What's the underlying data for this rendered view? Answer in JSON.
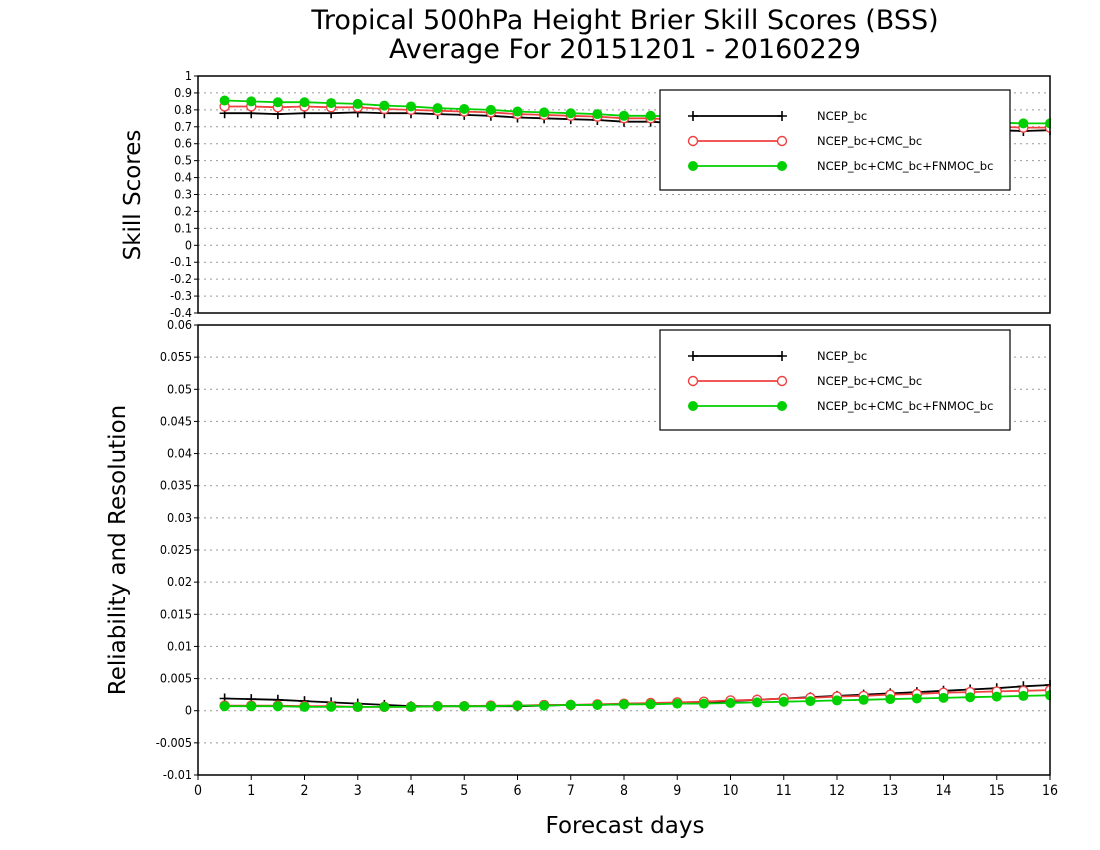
{
  "title": {
    "line1": "Tropical 500hPa Height Brier Skill Scores (BSS)",
    "line2": "Average For 20151201 - 20160229"
  },
  "x_axis": {
    "label": "Forecast days",
    "ticks": [
      "0",
      "1",
      "2",
      "3",
      "4",
      "5",
      "6",
      "7",
      "8",
      "9",
      "10",
      "11",
      "12",
      "13",
      "14",
      "15",
      "16"
    ],
    "range": [
      0,
      16
    ]
  },
  "colors": {
    "ncep": "#000000",
    "ncep_cmc": "#f04040",
    "ncep_cmc_fnmoc": "#00d000",
    "grid": "#999999"
  },
  "chart_data": [
    {
      "type": "line",
      "ylabel": "Skill Scores",
      "ylim": [
        -0.4,
        1
      ],
      "yticks": [
        "1",
        "0.9",
        "0.8",
        "0.7",
        "0.6",
        "0.5",
        "0.4",
        "0.3",
        "0.2",
        "0.1",
        "0",
        "-0.1",
        "-0.2",
        "-0.3",
        "-0.4"
      ],
      "grid": true,
      "legend_position": "top-right",
      "x": [
        0.5,
        1,
        1.5,
        2,
        2.5,
        3,
        3.5,
        4,
        4.5,
        5,
        5.5,
        6,
        6.5,
        7,
        7.5,
        8,
        8.5,
        9,
        9.5,
        10,
        10.5,
        11,
        11.5,
        12,
        12.5,
        13,
        13.5,
        14,
        14.5,
        15,
        15.5,
        16
      ],
      "series": [
        {
          "name": "NCEP_bc",
          "marker": "plus",
          "values": [
            0.78,
            0.78,
            0.775,
            0.78,
            0.78,
            0.785,
            0.78,
            0.78,
            0.775,
            0.77,
            0.765,
            0.755,
            0.75,
            0.745,
            0.74,
            0.73,
            0.73,
            0.72,
            0.72,
            0.715,
            0.71,
            0.71,
            0.705,
            0.7,
            0.7,
            0.695,
            0.69,
            0.69,
            0.685,
            0.68,
            0.675,
            0.68
          ]
        },
        {
          "name": "NCEP_bc+CMC_bc",
          "marker": "open-circle",
          "values": [
            0.82,
            0.82,
            0.815,
            0.82,
            0.815,
            0.815,
            0.805,
            0.8,
            0.795,
            0.79,
            0.785,
            0.775,
            0.77,
            0.765,
            0.76,
            0.75,
            0.75,
            0.74,
            0.74,
            0.735,
            0.73,
            0.73,
            0.72,
            0.72,
            0.715,
            0.715,
            0.71,
            0.71,
            0.705,
            0.7,
            0.695,
            0.695
          ]
        },
        {
          "name": "NCEP_bc+CMC_bc+FNMOC_bc",
          "marker": "filled-circle",
          "values": [
            0.855,
            0.85,
            0.845,
            0.845,
            0.84,
            0.835,
            0.825,
            0.82,
            0.81,
            0.805,
            0.8,
            0.79,
            0.785,
            0.78,
            0.775,
            0.765,
            0.765,
            0.76,
            0.76,
            0.755,
            0.75,
            0.75,
            0.745,
            0.745,
            0.74,
            0.74,
            0.735,
            0.735,
            0.73,
            0.725,
            0.72,
            0.72
          ]
        }
      ]
    },
    {
      "type": "line",
      "ylabel": "Reliability and Resolution",
      "ylim": [
        -0.01,
        0.06
      ],
      "yticks": [
        "0.06",
        "0.055",
        "0.05",
        "0.045",
        "0.04",
        "0.035",
        "0.03",
        "0.025",
        "0.02",
        "0.015",
        "0.01",
        "0.005",
        "0",
        "-0.005",
        "-0.01"
      ],
      "grid": true,
      "legend_position": "top-right",
      "x": [
        0.5,
        1,
        1.5,
        2,
        2.5,
        3,
        3.5,
        4,
        4.5,
        5,
        5.5,
        6,
        6.5,
        7,
        7.5,
        8,
        8.5,
        9,
        9.5,
        10,
        10.5,
        11,
        11.5,
        12,
        12.5,
        13,
        13.5,
        14,
        14.5,
        15,
        15.5,
        16
      ],
      "series": [
        {
          "name": "NCEP_bc",
          "marker": "plus",
          "values": [
            0.0019,
            0.0018,
            0.0017,
            0.0015,
            0.0013,
            0.0011,
            0.0009,
            0.0007,
            0.0007,
            0.0007,
            0.0007,
            0.0007,
            0.0008,
            0.0009,
            0.0009,
            0.001,
            0.0011,
            0.0012,
            0.0013,
            0.0015,
            0.0017,
            0.0019,
            0.0021,
            0.0023,
            0.0025,
            0.0027,
            0.0029,
            0.0031,
            0.0033,
            0.0035,
            0.0038,
            0.004
          ]
        },
        {
          "name": "NCEP_bc+CMC_bc",
          "marker": "open-circle",
          "values": [
            0.0008,
            0.0008,
            0.0008,
            0.0007,
            0.0007,
            0.0006,
            0.0006,
            0.0006,
            0.0007,
            0.0007,
            0.0008,
            0.0008,
            0.0009,
            0.0009,
            0.001,
            0.0011,
            0.0012,
            0.0013,
            0.0014,
            0.0016,
            0.0017,
            0.0019,
            0.002,
            0.0022,
            0.0023,
            0.0025,
            0.0026,
            0.0028,
            0.0029,
            0.003,
            0.0031,
            0.0032
          ]
        },
        {
          "name": "NCEP_bc+CMC_bc+FNMOC_bc",
          "marker": "filled-circle",
          "values": [
            0.0007,
            0.0007,
            0.0007,
            0.0006,
            0.0006,
            0.0006,
            0.0006,
            0.0006,
            0.0007,
            0.0007,
            0.0007,
            0.0008,
            0.0008,
            0.0009,
            0.0009,
            0.001,
            0.001,
            0.0011,
            0.0011,
            0.0012,
            0.0013,
            0.0014,
            0.0015,
            0.0016,
            0.0017,
            0.0018,
            0.0019,
            0.002,
            0.0021,
            0.0022,
            0.0023,
            0.0024
          ]
        }
      ]
    }
  ]
}
